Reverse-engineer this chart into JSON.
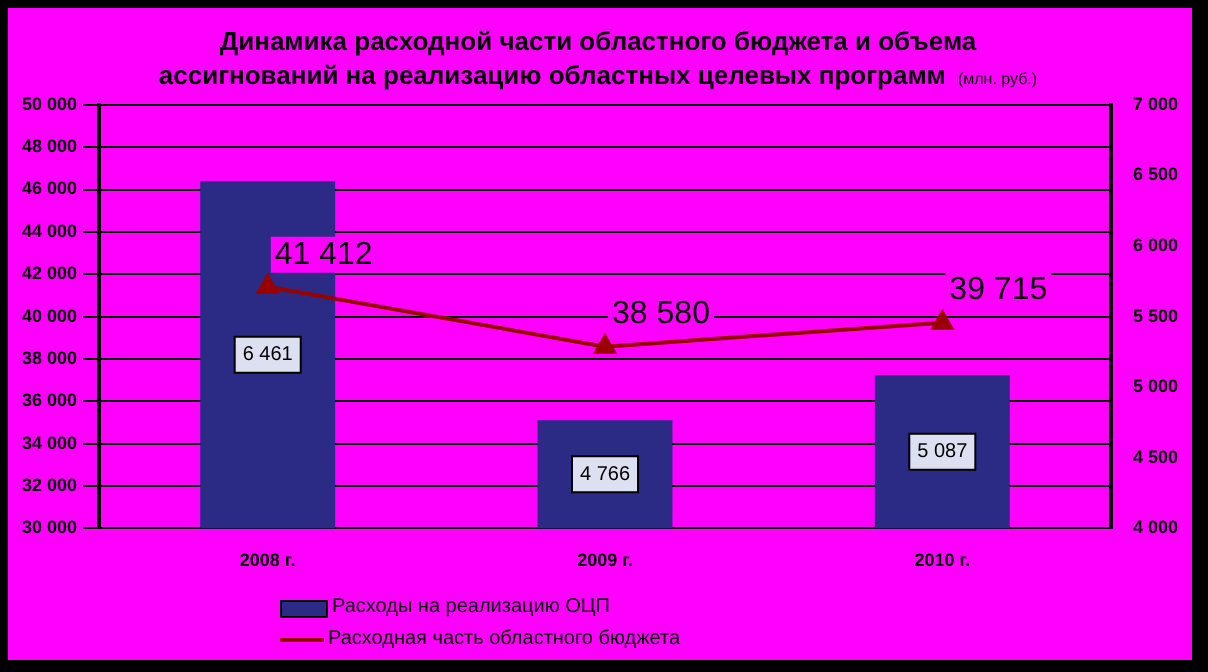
{
  "chart_data": {
    "type": "bar",
    "title": "Динамика расходной части областного бюджета и объема ассигнований на реализацию областных целевых программ",
    "annotations": [
      "(млн. руб.)"
    ],
    "categories": [
      "2008 г.",
      "2009 г.",
      "2010 г."
    ],
    "series": [
      {
        "name": "Расходы на реализацию ОЦП",
        "type": "bar",
        "axis": "y2",
        "color": "#2b2b85",
        "values": [
          6461,
          4766,
          5087
        ]
      },
      {
        "name": "Расходная часть областного бюджета",
        "type": "line",
        "axis": "y",
        "color": "#990000",
        "marker": "triangle",
        "values": [
          41412,
          38580,
          39715
        ]
      }
    ],
    "ylim": [
      30000,
      50000
    ],
    "yticks": [
      {
        "value": 30000,
        "label": "30 000"
      },
      {
        "value": 32000,
        "label": "32 000"
      },
      {
        "value": 34000,
        "label": "34 000"
      },
      {
        "value": 36000,
        "label": "36 000"
      },
      {
        "value": 38000,
        "label": "38 000"
      },
      {
        "value": 40000,
        "label": "40 000"
      },
      {
        "value": 42000,
        "label": "42 000"
      },
      {
        "value": 44000,
        "label": "44 000"
      },
      {
        "value": 46000,
        "label": "46 000"
      },
      {
        "value": 48000,
        "label": "48 000"
      },
      {
        "value": 50000,
        "label": "50 000"
      }
    ],
    "y2lim": [
      4000,
      7000
    ],
    "y2ticks": [
      {
        "value": 4000,
        "label": "4 000"
      },
      {
        "value": 4500,
        "label": "4 500"
      },
      {
        "value": 5000,
        "label": "5 000"
      },
      {
        "value": 5500,
        "label": "5 500"
      },
      {
        "value": 6000,
        "label": "6 000"
      },
      {
        "value": 6500,
        "label": "6 500"
      },
      {
        "value": 7000,
        "label": "7 000"
      }
    ],
    "grid": "y",
    "legend": "bottom",
    "data_labels": true
  }
}
